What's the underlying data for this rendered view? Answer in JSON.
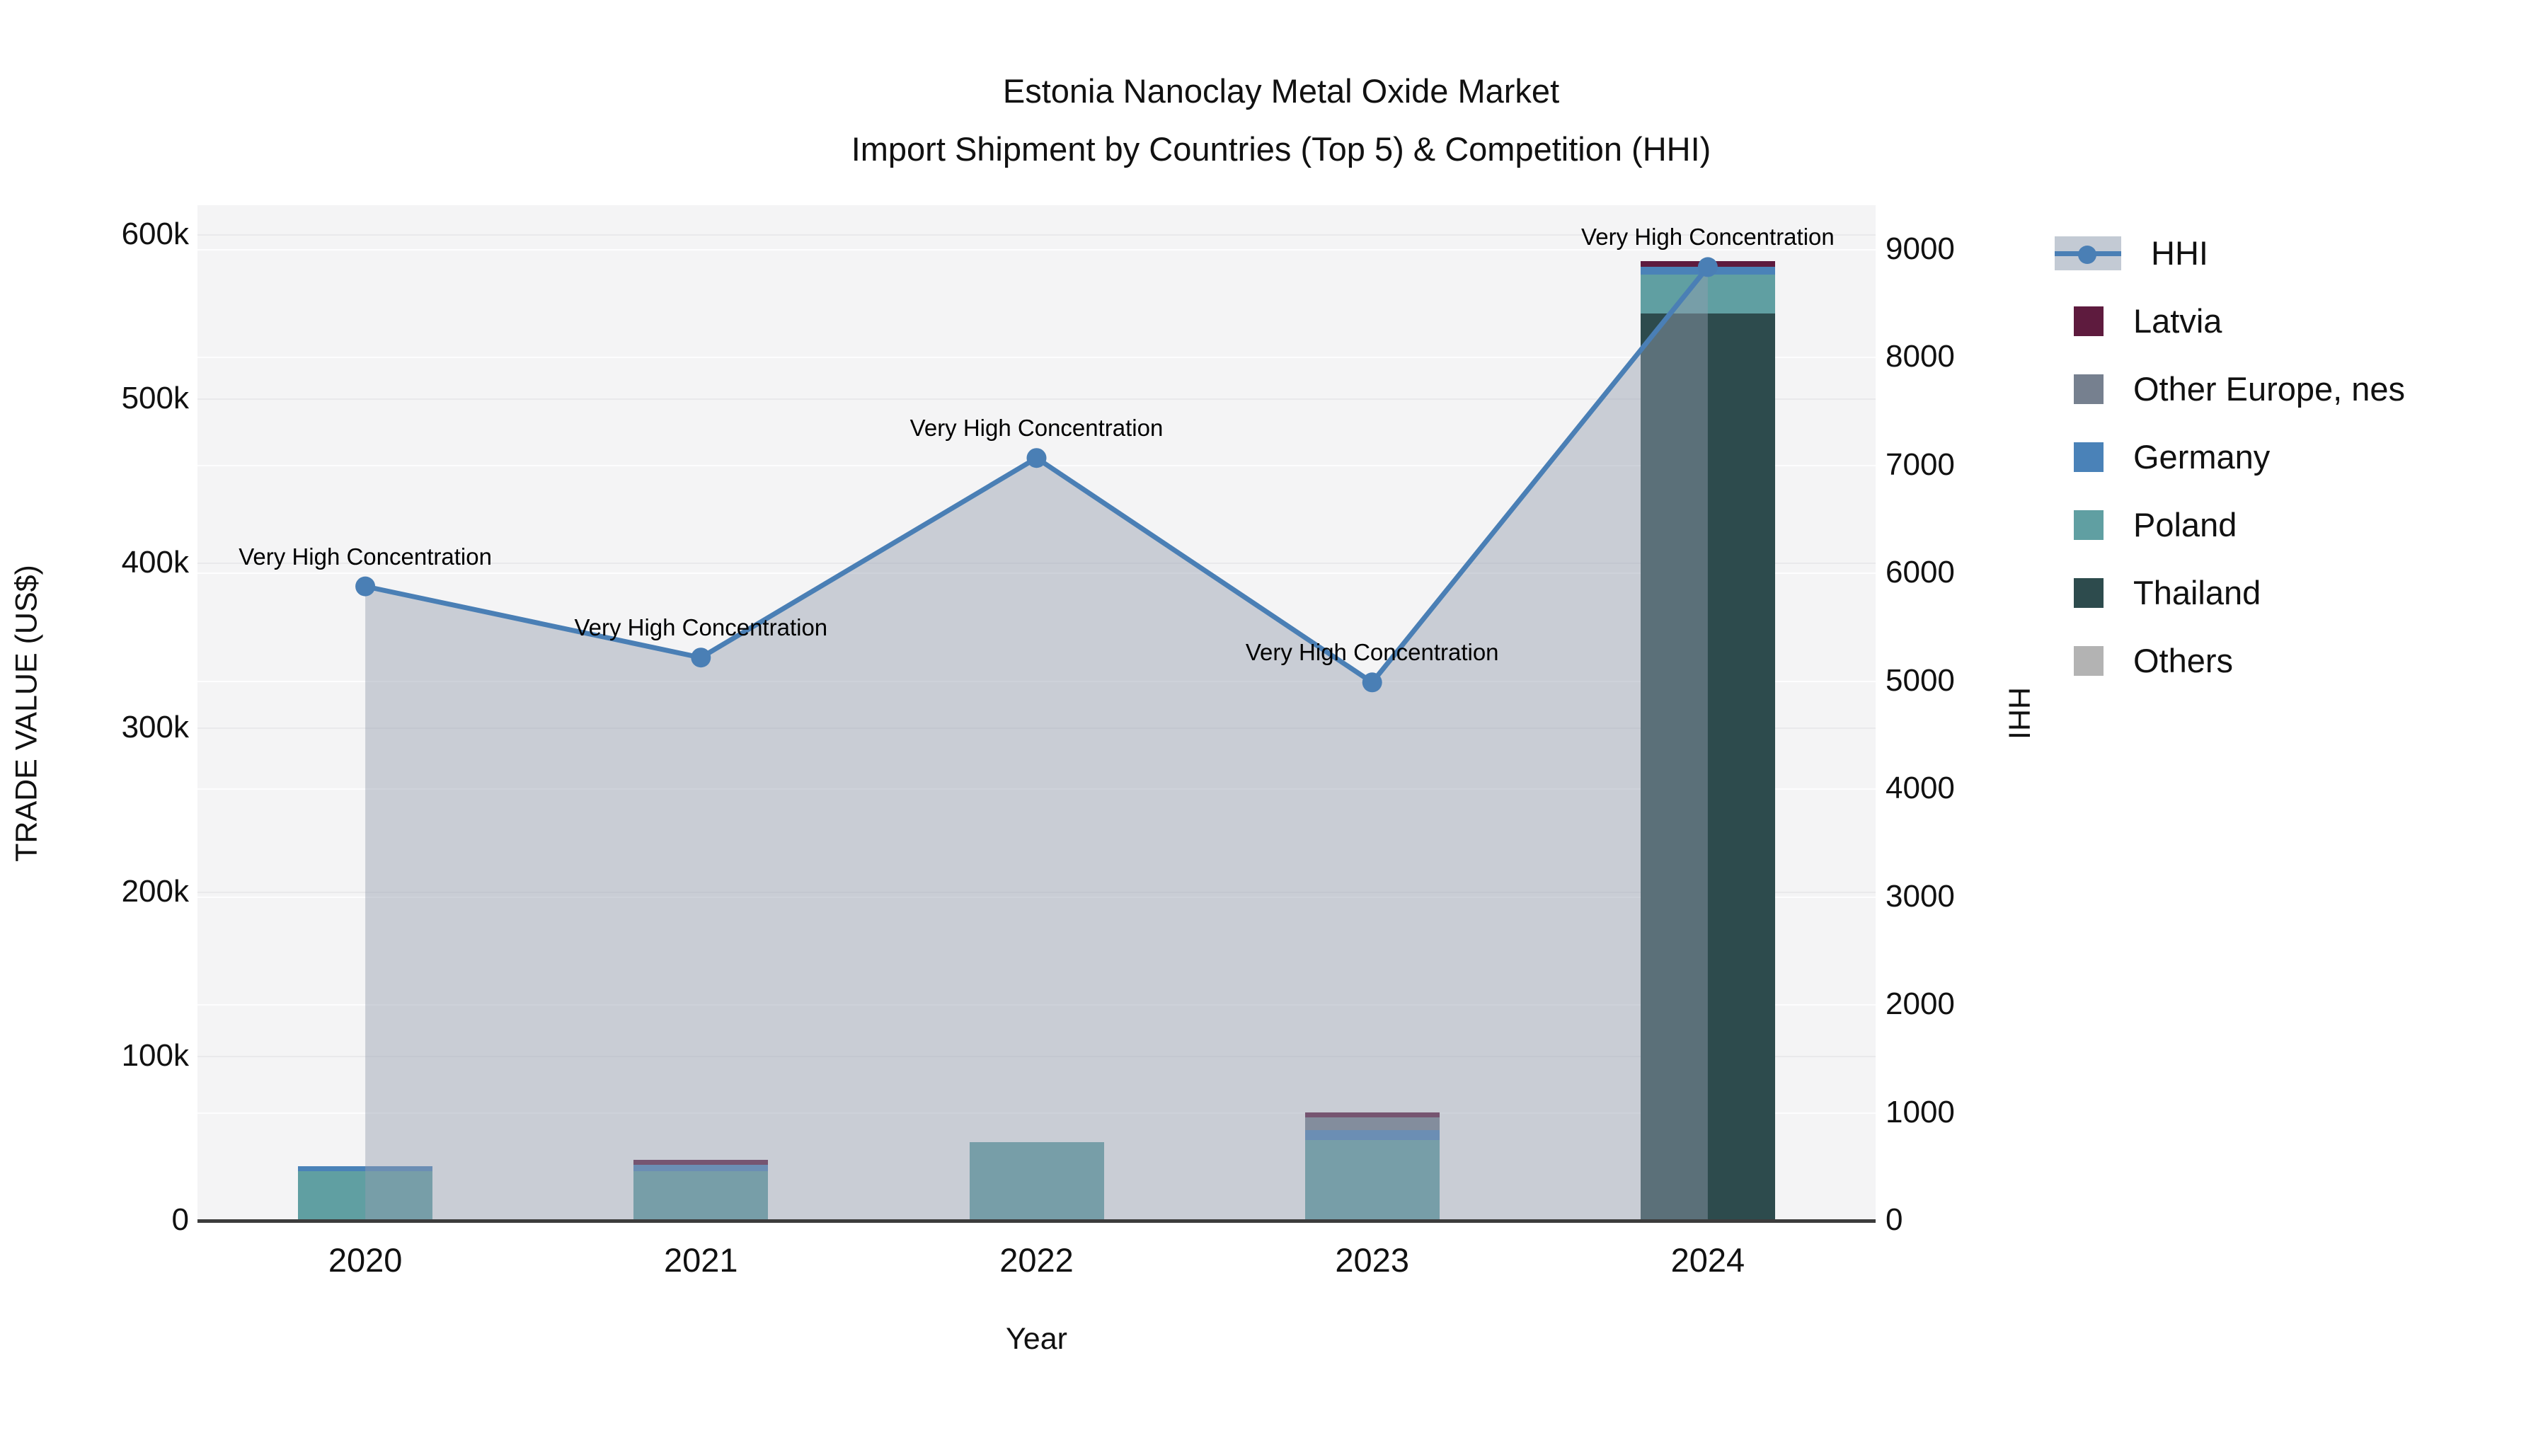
{
  "title": {
    "line1": "Estonia Nanoclay Metal Oxide Market",
    "line2": "Import Shipment by Countries (Top 5) & Competition (HHI)"
  },
  "axis_titles": {
    "left": "TRADE VALUE (US$)",
    "bottom": "Year",
    "right": "HHI"
  },
  "legend": {
    "items": [
      {
        "label": "HHI",
        "type": "line",
        "color": "#4a7fb5"
      },
      {
        "label": "Latvia",
        "type": "swatch",
        "color": "#5e1b3e"
      },
      {
        "label": "Other Europe, nes",
        "type": "swatch",
        "color": "#76808f"
      },
      {
        "label": "Germany",
        "type": "swatch",
        "color": "#4a82b8"
      },
      {
        "label": "Poland",
        "type": "swatch",
        "color": "#609fa2"
      },
      {
        "label": "Thailand",
        "type": "swatch",
        "color": "#2d4b4d"
      },
      {
        "label": "Others",
        "type": "swatch",
        "color": "#b3b3b3"
      }
    ]
  },
  "chart_data": {
    "type": "bar+line",
    "categories": [
      "2020",
      "2021",
      "2022",
      "2023",
      "2024"
    ],
    "bar_series": [
      {
        "name": "Thailand",
        "color": "#2d4b4d",
        "values": [
          0,
          0,
          0,
          0,
          552000
        ]
      },
      {
        "name": "Poland",
        "color": "#609fa2",
        "values": [
          30000,
          30000,
          48000,
          49000,
          24000
        ]
      },
      {
        "name": "Germany",
        "color": "#4a82b8",
        "values": [
          3000,
          4000,
          0,
          6000,
          4500
        ]
      },
      {
        "name": "Other Europe, nes",
        "color": "#76808f",
        "values": [
          0,
          0,
          0,
          8000,
          0
        ]
      },
      {
        "name": "Latvia",
        "color": "#5e1b3e",
        "values": [
          0,
          3000,
          0,
          3000,
          3500
        ]
      },
      {
        "name": "Others",
        "color": "#b3b3b3",
        "values": [
          0,
          0,
          0,
          0,
          0
        ]
      }
    ],
    "line_series": {
      "name": "HHI",
      "color": "#4a7fb5",
      "fill_color": "rgba(148,157,175,0.45)",
      "values": [
        5880,
        5220,
        7070,
        4990,
        8840
      ]
    },
    "annotations": [
      "Very High Concentration",
      "Very High Concentration",
      "Very High Concentration",
      "Very High Concentration",
      "Very High Concentration"
    ],
    "left_axis": {
      "label": "TRADE VALUE (US$)",
      "ticks": [
        "0",
        "100k",
        "200k",
        "300k",
        "400k",
        "500k",
        "600k"
      ],
      "tick_values": [
        0,
        100000,
        200000,
        300000,
        400000,
        500000,
        600000
      ]
    },
    "right_axis": {
      "label": "HHI",
      "ticks": [
        "0",
        "1000",
        "2000",
        "3000",
        "4000",
        "5000",
        "6000",
        "7000",
        "8000",
        "9000"
      ],
      "tick_values": [
        0,
        1000,
        2000,
        3000,
        4000,
        5000,
        6000,
        7000,
        8000,
        9000
      ]
    },
    "xlabel": "Year",
    "legend_position": "right",
    "grid": true
  }
}
